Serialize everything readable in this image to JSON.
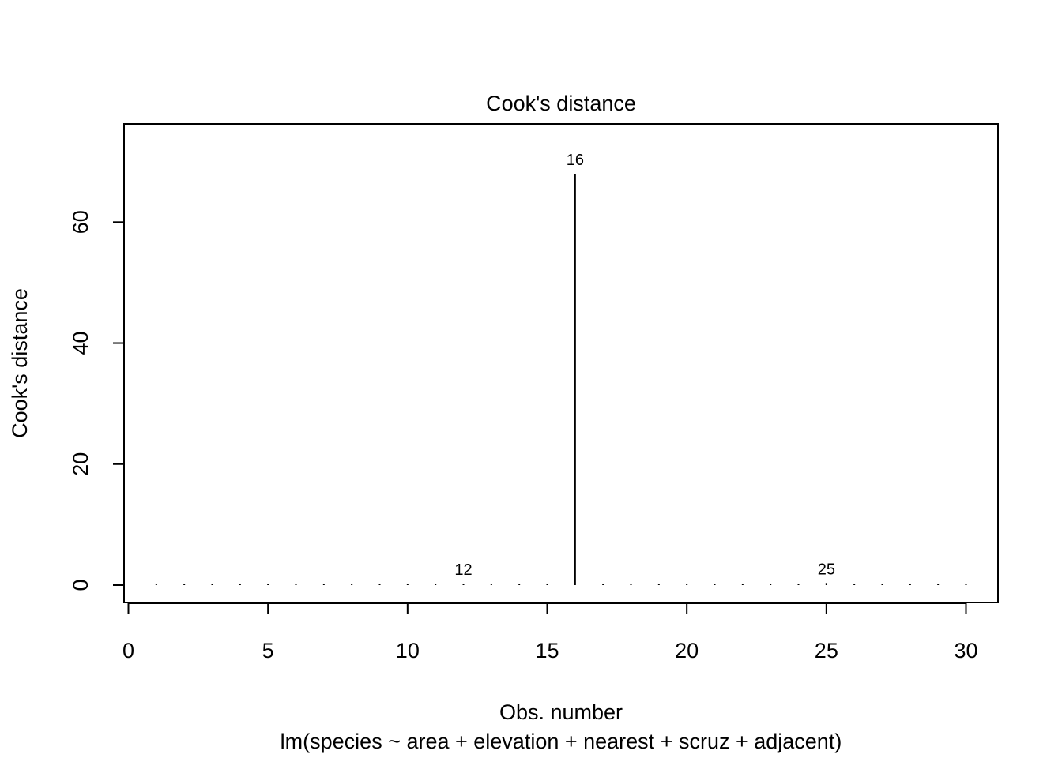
{
  "chart_data": {
    "type": "line",
    "title": "Cook's distance",
    "xlabel": "Obs. number",
    "subtitle": "lm(species ~ area + elevation + nearest + scruz + adjacent)",
    "ylabel": "Cook's distance",
    "xlim": [
      0,
      30
    ],
    "ylim": [
      0,
      68
    ],
    "x_ticks": [
      0,
      5,
      10,
      15,
      20,
      25,
      30
    ],
    "y_ticks": [
      0,
      20,
      40,
      60
    ],
    "grid": false,
    "legend": "none",
    "x": [
      1,
      2,
      3,
      4,
      5,
      6,
      7,
      8,
      9,
      10,
      11,
      12,
      13,
      14,
      15,
      16,
      17,
      18,
      19,
      20,
      21,
      22,
      23,
      24,
      25,
      26,
      27,
      28,
      29,
      30
    ],
    "values": [
      0.01,
      0.01,
      0.01,
      0.01,
      0.01,
      0.01,
      0.01,
      0.01,
      0.01,
      0.02,
      0.05,
      0.25,
      0.01,
      0.02,
      0.1,
      68.0,
      0.01,
      0.01,
      0.15,
      0.01,
      0.01,
      0.01,
      0.2,
      0.01,
      0.35,
      0.01,
      0.01,
      0.01,
      0.01,
      0.01
    ],
    "labeled_points": [
      {
        "x": 12,
        "label": "12"
      },
      {
        "x": 16,
        "label": "16"
      },
      {
        "x": 25,
        "label": "25"
      }
    ],
    "color": "#000000"
  }
}
